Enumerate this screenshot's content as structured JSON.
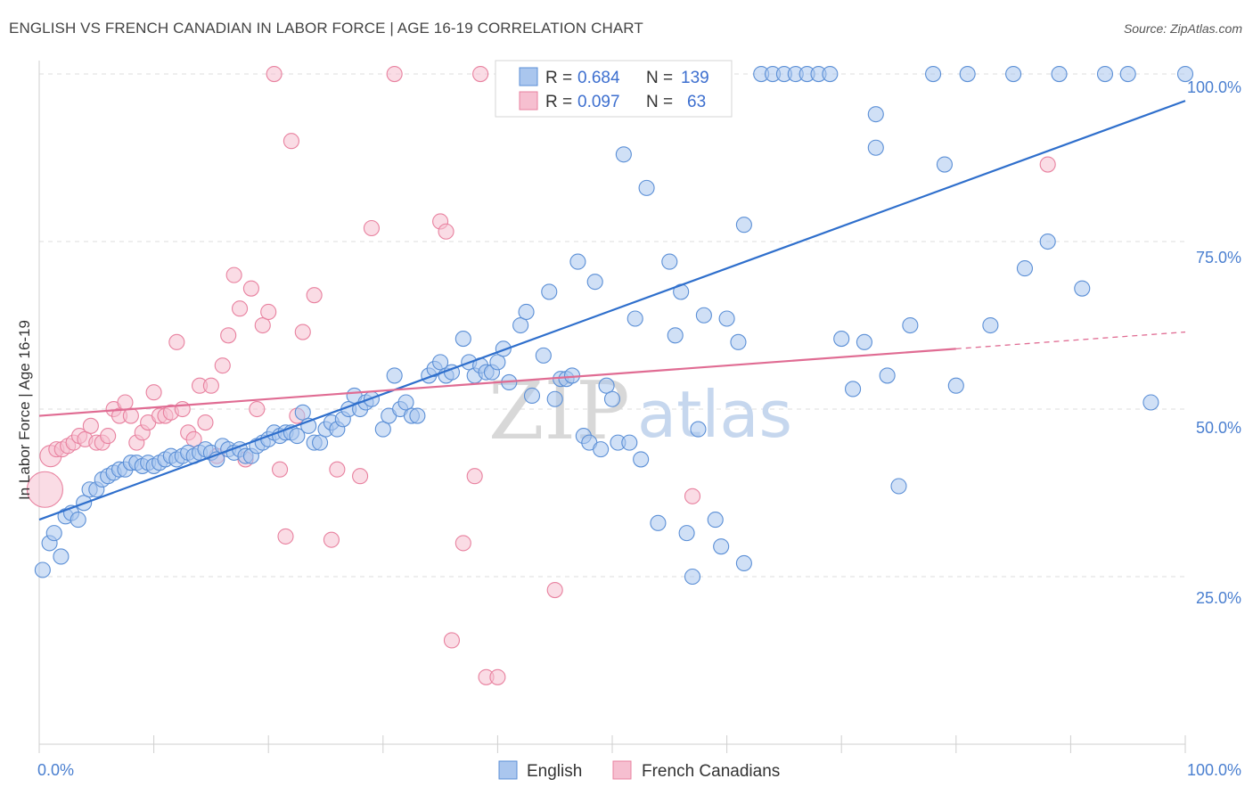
{
  "header": {
    "title": "ENGLISH VS FRENCH CANADIAN IN LABOR FORCE | AGE 16-19 CORRELATION CHART",
    "source": "Source: ZipAtlas.com"
  },
  "watermark": {
    "zip": "ZIP",
    "atlas": "atlas"
  },
  "colors": {
    "english_fill": "#aac6ee",
    "english_stroke": "#5b8fd6",
    "english_line": "#2f6fcc",
    "french_fill": "#f6bfd0",
    "french_stroke": "#e8819f",
    "french_line": "#e06c93",
    "tick_label": "#4a7fd0",
    "grid": "#dedede"
  },
  "legend": {
    "english": {
      "r_label": "R =",
      "r_value": "0.684",
      "n_label": "N =",
      "n_value": "139"
    },
    "french": {
      "r_label": "R =",
      "r_value": "0.097",
      "n_label": "N =",
      "n_value": "63"
    }
  },
  "chart_data": {
    "type": "scatter",
    "title": "ENGLISH VS FRENCH CANADIAN IN LABOR FORCE | AGE 16-19 CORRELATION CHART",
    "xlabel": "",
    "ylabel": "In Labor Force | Age 16-19",
    "xlim": [
      0,
      100
    ],
    "ylim": [
      0,
      102
    ],
    "x_tick_labels": [
      "0.0%",
      "100.0%"
    ],
    "y_ticks": [
      25,
      50,
      75,
      100
    ],
    "y_tick_labels": [
      "25.0%",
      "50.0%",
      "75.0%",
      "100.0%"
    ],
    "legend": [
      "English",
      "French Canadians"
    ],
    "series": [
      {
        "name": "English",
        "r": 0.684,
        "n": 139,
        "trend": {
          "x0": 0,
          "y0": 33.5,
          "x1": 100,
          "y1": 96.0
        },
        "points": [
          [
            0.3,
            26
          ],
          [
            0.9,
            30
          ],
          [
            1.3,
            31.5
          ],
          [
            1.9,
            28
          ],
          [
            2.3,
            34
          ],
          [
            2.8,
            34.5
          ],
          [
            3.4,
            33.5
          ],
          [
            3.9,
            36
          ],
          [
            4.4,
            38
          ],
          [
            5,
            38
          ],
          [
            5.5,
            39.5
          ],
          [
            6,
            40
          ],
          [
            6.5,
            40.5
          ],
          [
            7,
            41
          ],
          [
            7.5,
            41
          ],
          [
            8,
            42
          ],
          [
            8.5,
            42
          ],
          [
            9,
            41.5
          ],
          [
            9.5,
            42
          ],
          [
            10,
            41.5
          ],
          [
            10.5,
            42
          ],
          [
            11,
            42.5
          ],
          [
            11.5,
            43
          ],
          [
            12,
            42.5
          ],
          [
            12.5,
            43
          ],
          [
            13,
            43.5
          ],
          [
            13.5,
            43
          ],
          [
            14,
            43.5
          ],
          [
            14.5,
            44
          ],
          [
            15,
            43.5
          ],
          [
            15.5,
            42.5
          ],
          [
            16,
            44.5
          ],
          [
            16.5,
            44
          ],
          [
            17,
            43.5
          ],
          [
            17.5,
            44
          ],
          [
            18,
            43
          ],
          [
            18.5,
            43
          ],
          [
            19,
            44.5
          ],
          [
            19.5,
            45
          ],
          [
            20,
            45.5
          ],
          [
            20.5,
            46.5
          ],
          [
            21,
            46
          ],
          [
            21.5,
            46.5
          ],
          [
            22,
            46.5
          ],
          [
            22.5,
            46
          ],
          [
            23,
            49.5
          ],
          [
            23.5,
            47.5
          ],
          [
            24,
            45
          ],
          [
            24.5,
            45
          ],
          [
            25,
            47
          ],
          [
            25.5,
            48
          ],
          [
            26,
            47
          ],
          [
            26.5,
            48.5
          ],
          [
            27,
            50
          ],
          [
            27.5,
            52
          ],
          [
            28,
            50
          ],
          [
            28.5,
            51
          ],
          [
            29,
            51.5
          ],
          [
            30,
            47
          ],
          [
            30.5,
            49
          ],
          [
            31,
            55
          ],
          [
            31.5,
            50
          ],
          [
            32,
            51
          ],
          [
            32.5,
            49
          ],
          [
            33,
            49
          ],
          [
            34,
            55
          ],
          [
            34.5,
            56
          ],
          [
            35,
            57
          ],
          [
            35.5,
            55
          ],
          [
            36,
            55.5
          ],
          [
            37,
            60.5
          ],
          [
            37.5,
            57
          ],
          [
            38,
            55
          ],
          [
            38.5,
            56.5
          ],
          [
            39,
            55.5
          ],
          [
            39.5,
            55.5
          ],
          [
            40,
            57
          ],
          [
            40.5,
            59
          ],
          [
            41,
            54
          ],
          [
            42,
            62.5
          ],
          [
            42.5,
            64.5
          ],
          [
            43,
            52
          ],
          [
            44,
            58
          ],
          [
            44.5,
            67.5
          ],
          [
            45,
            51.5
          ],
          [
            45.5,
            54.5
          ],
          [
            46,
            54.5
          ],
          [
            46.5,
            55
          ],
          [
            47,
            72
          ],
          [
            47.5,
            46
          ],
          [
            48,
            45
          ],
          [
            48.5,
            69
          ],
          [
            49,
            44
          ],
          [
            49.5,
            53.5
          ],
          [
            50,
            51.5
          ],
          [
            50.5,
            45
          ],
          [
            51,
            88
          ],
          [
            51.5,
            45
          ],
          [
            52,
            63.5
          ],
          [
            52.5,
            42.5
          ],
          [
            53,
            83
          ],
          [
            54,
            33
          ],
          [
            55,
            72
          ],
          [
            55.5,
            61
          ],
          [
            56,
            67.5
          ],
          [
            56.5,
            31.5
          ],
          [
            57,
            25
          ],
          [
            57.5,
            47
          ],
          [
            58,
            64
          ],
          [
            59,
            33.5
          ],
          [
            59.5,
            29.5
          ],
          [
            60,
            63.5
          ],
          [
            61,
            60
          ],
          [
            61.5,
            27
          ],
          [
            61.5,
            77.5
          ],
          [
            63,
            100
          ],
          [
            64,
            100
          ],
          [
            65,
            100
          ],
          [
            66,
            100
          ],
          [
            67,
            100
          ],
          [
            68,
            100
          ],
          [
            69,
            100
          ],
          [
            70,
            60.5
          ],
          [
            71,
            53
          ],
          [
            72,
            60
          ],
          [
            73,
            94
          ],
          [
            73,
            89
          ],
          [
            74,
            55
          ],
          [
            75,
            38.5
          ],
          [
            76,
            62.5
          ],
          [
            78,
            100
          ],
          [
            79,
            86.5
          ],
          [
            80,
            53.5
          ],
          [
            81,
            100
          ],
          [
            83,
            62.5
          ],
          [
            85,
            100
          ],
          [
            86,
            71
          ],
          [
            88,
            75
          ],
          [
            89,
            100
          ],
          [
            91,
            68
          ],
          [
            93,
            100
          ],
          [
            95,
            100
          ],
          [
            97,
            51
          ],
          [
            100,
            100
          ]
        ]
      },
      {
        "name": "French Canadians",
        "r": 0.097,
        "n": 63,
        "trend": {
          "x0": 0,
          "y0": 49.0,
          "x1": 80,
          "y1": 59.0
        },
        "trend_dashed": {
          "x0": 80,
          "y0": 59.0,
          "x1": 100,
          "y1": 61.5
        },
        "points": [
          [
            0.5,
            38
          ],
          [
            1,
            43
          ],
          [
            1.5,
            44
          ],
          [
            2,
            44
          ],
          [
            2.5,
            44.5
          ],
          [
            3,
            45
          ],
          [
            3.5,
            46
          ],
          [
            4,
            45.5
          ],
          [
            4.5,
            47.5
          ],
          [
            5,
            45
          ],
          [
            5.5,
            45
          ],
          [
            6,
            46
          ],
          [
            6.5,
            50
          ],
          [
            7,
            49
          ],
          [
            7.5,
            51
          ],
          [
            8,
            49
          ],
          [
            8.5,
            45
          ],
          [
            9,
            46.5
          ],
          [
            9.5,
            48
          ],
          [
            10,
            52.5
          ],
          [
            10.5,
            49
          ],
          [
            11,
            49
          ],
          [
            11.5,
            49.5
          ],
          [
            12,
            60
          ],
          [
            12.5,
            50
          ],
          [
            13,
            46.5
          ],
          [
            13.5,
            45.5
          ],
          [
            14,
            53.5
          ],
          [
            14.5,
            48
          ],
          [
            15,
            53.5
          ],
          [
            15.5,
            43
          ],
          [
            16,
            56.5
          ],
          [
            16.5,
            61
          ],
          [
            17,
            70
          ],
          [
            17.5,
            65
          ],
          [
            18,
            42.5
          ],
          [
            18.5,
            68
          ],
          [
            19,
            50
          ],
          [
            19.5,
            62.5
          ],
          [
            20,
            64.5
          ],
          [
            20.5,
            100
          ],
          [
            21,
            41
          ],
          [
            21.5,
            31
          ],
          [
            22,
            90
          ],
          [
            22.5,
            49
          ],
          [
            23,
            61.5
          ],
          [
            24,
            67
          ],
          [
            25.5,
            30.5
          ],
          [
            26,
            41
          ],
          [
            28,
            40
          ],
          [
            29,
            77
          ],
          [
            31,
            100
          ],
          [
            35,
            78
          ],
          [
            35.5,
            76.5
          ],
          [
            36,
            15.5
          ],
          [
            37,
            30
          ],
          [
            38,
            40
          ],
          [
            38.5,
            100
          ],
          [
            39,
            10
          ],
          [
            40,
            10
          ],
          [
            45,
            23
          ],
          [
            57,
            37
          ],
          [
            88,
            86.5
          ]
        ]
      }
    ]
  }
}
